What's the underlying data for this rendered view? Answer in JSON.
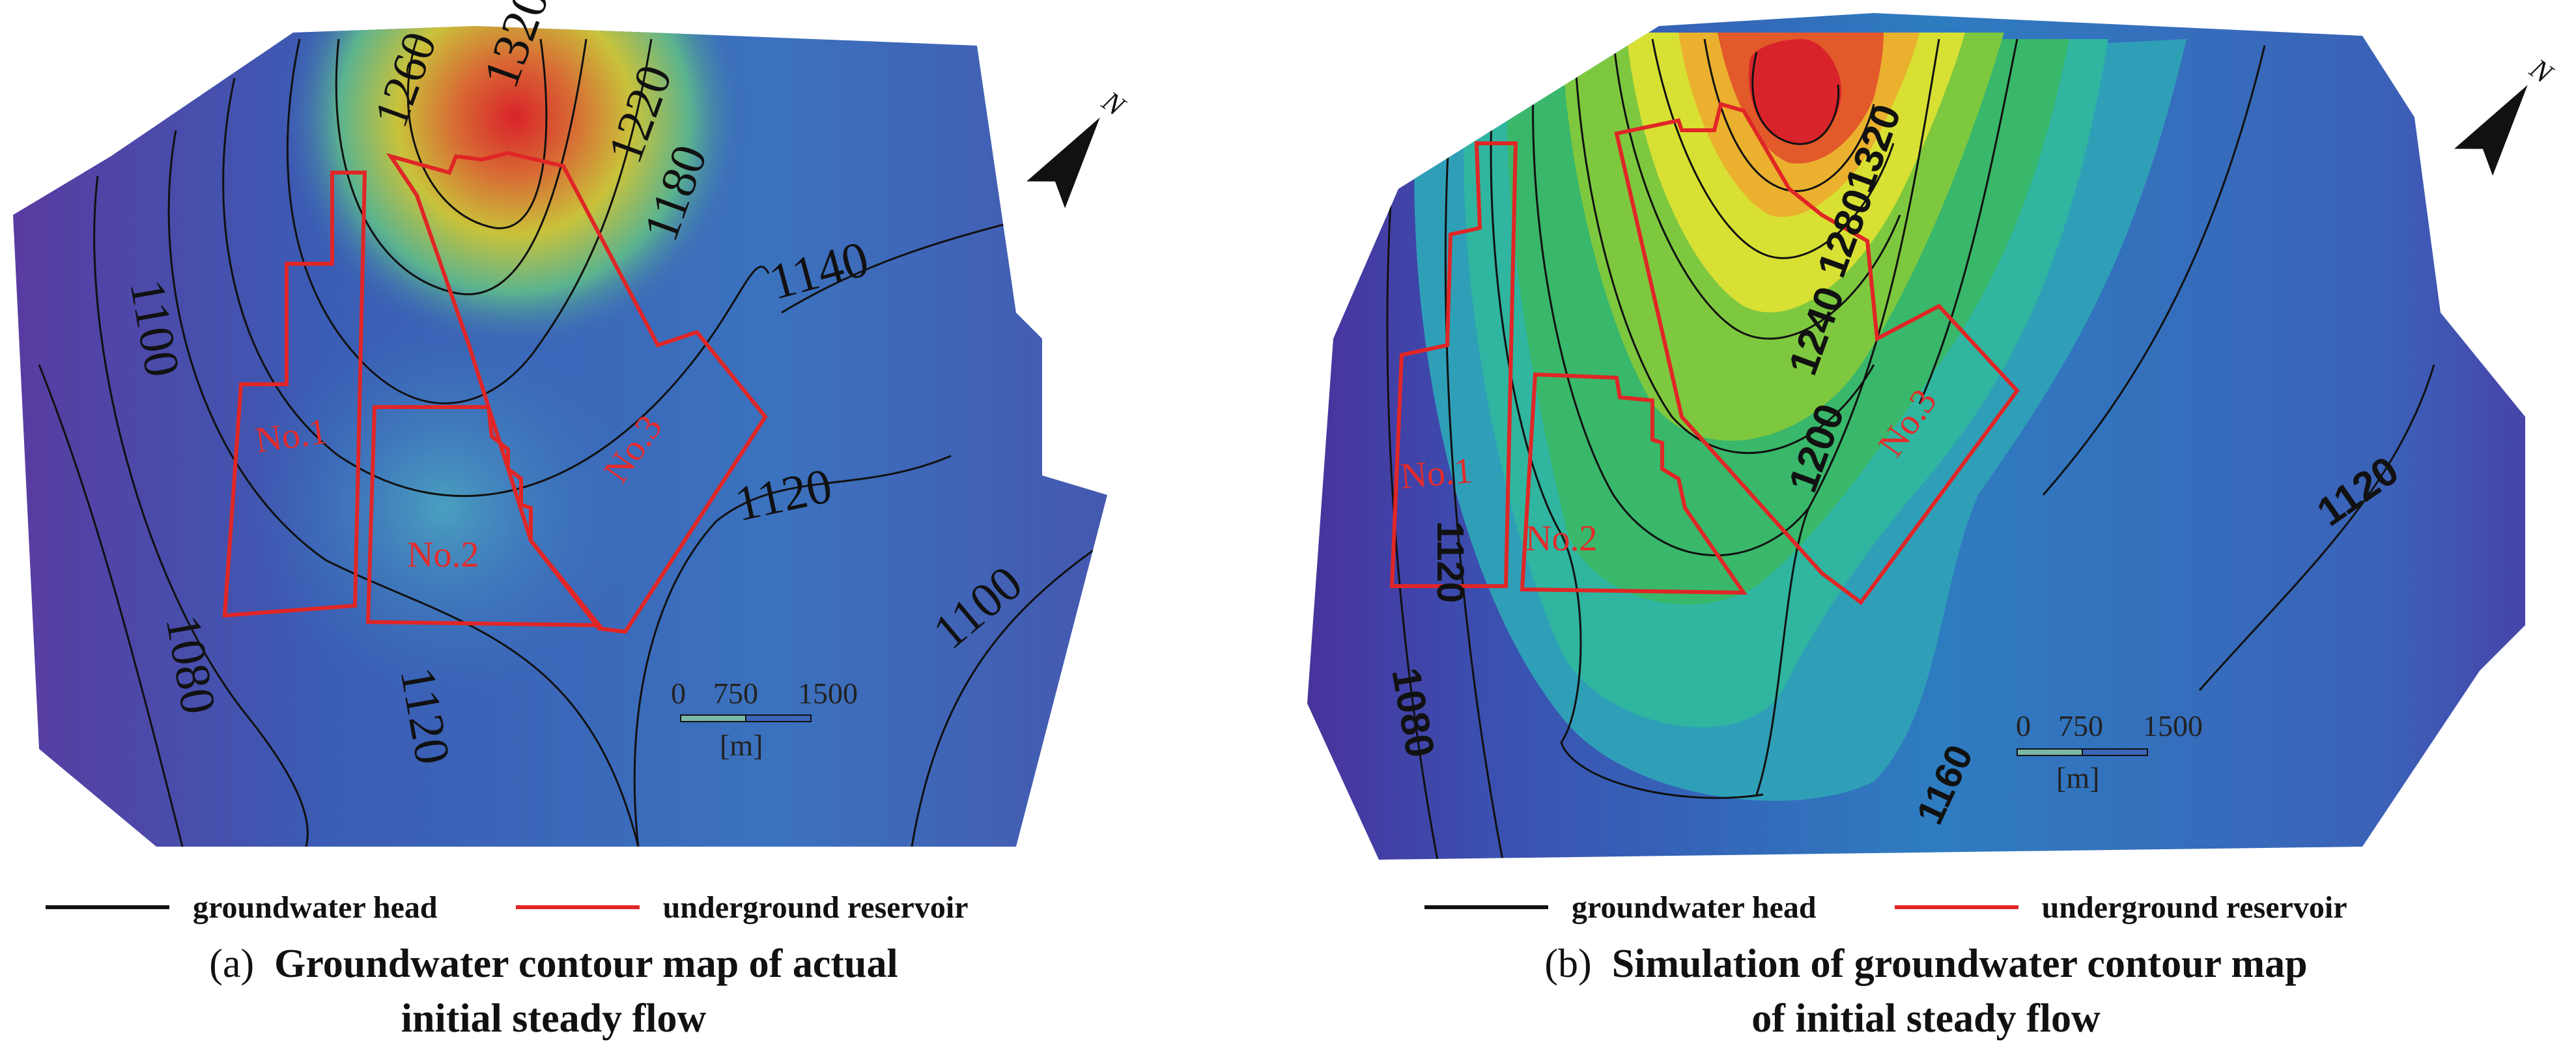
{
  "legend": {
    "head_label": "groundwater head",
    "reservoir_label": "underground reservoir",
    "head_color": "#111111",
    "reservoir_color": "#e02626"
  },
  "panel_a": {
    "caption_prefix": "(a)",
    "caption_line1": "Groundwater contour map of actual",
    "caption_line2": "initial steady flow",
    "contour_labels": [
      "1320",
      "1260",
      "1220",
      "1180",
      "1140",
      "1100",
      "1120",
      "1100",
      "1080",
      "1120"
    ],
    "reservoirs": [
      "No.1",
      "No.2",
      "No.3"
    ],
    "scale": {
      "t0": "0",
      "t1": "750",
      "t2": "1500",
      "unit": "[m]"
    },
    "north": "N"
  },
  "panel_b": {
    "caption_prefix": "(b)",
    "caption_line1": "Simulation of groundwater contour map",
    "caption_line2": "of initial steady flow",
    "contour_labels": [
      "1320",
      "1280",
      "1240",
      "1200",
      "1120",
      "1120",
      "1080",
      "1160"
    ],
    "reservoirs": [
      "No.1",
      "No.2",
      "No.3"
    ],
    "scale": {
      "t0": "0",
      "t1": "750",
      "t2": "1500",
      "unit": "[m]"
    },
    "north": "N"
  },
  "colors": {
    "low": "#4a2f9a",
    "mid": "#3b66b8",
    "green": "#3cb35a",
    "yellow": "#e6e33a",
    "high": "#d9232a"
  }
}
